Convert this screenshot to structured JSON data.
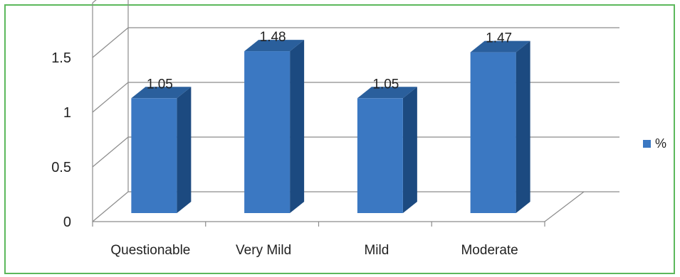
{
  "chart_data": {
    "type": "bar",
    "style": "3d-column",
    "categories": [
      "Questionable",
      "Very Mild",
      "Mild",
      "Moderate"
    ],
    "series": [
      {
        "name": "%",
        "values": [
          1.05,
          1.48,
          1.05,
          1.47
        ]
      }
    ],
    "data_labels": [
      "1.05",
      "1.48",
      "1.05",
      "1.47"
    ],
    "yticks": [
      "0",
      "0.5",
      "1",
      "1.5"
    ],
    "ylim": [
      0,
      2
    ],
    "grid": true,
    "legend_position": "right",
    "colors": {
      "bar_front": "#3b78c2",
      "bar_side": "#1c4a80",
      "bar_top": "#2a5f9c",
      "frame": "#5cb85c",
      "grid": "#8c8c8c"
    }
  }
}
